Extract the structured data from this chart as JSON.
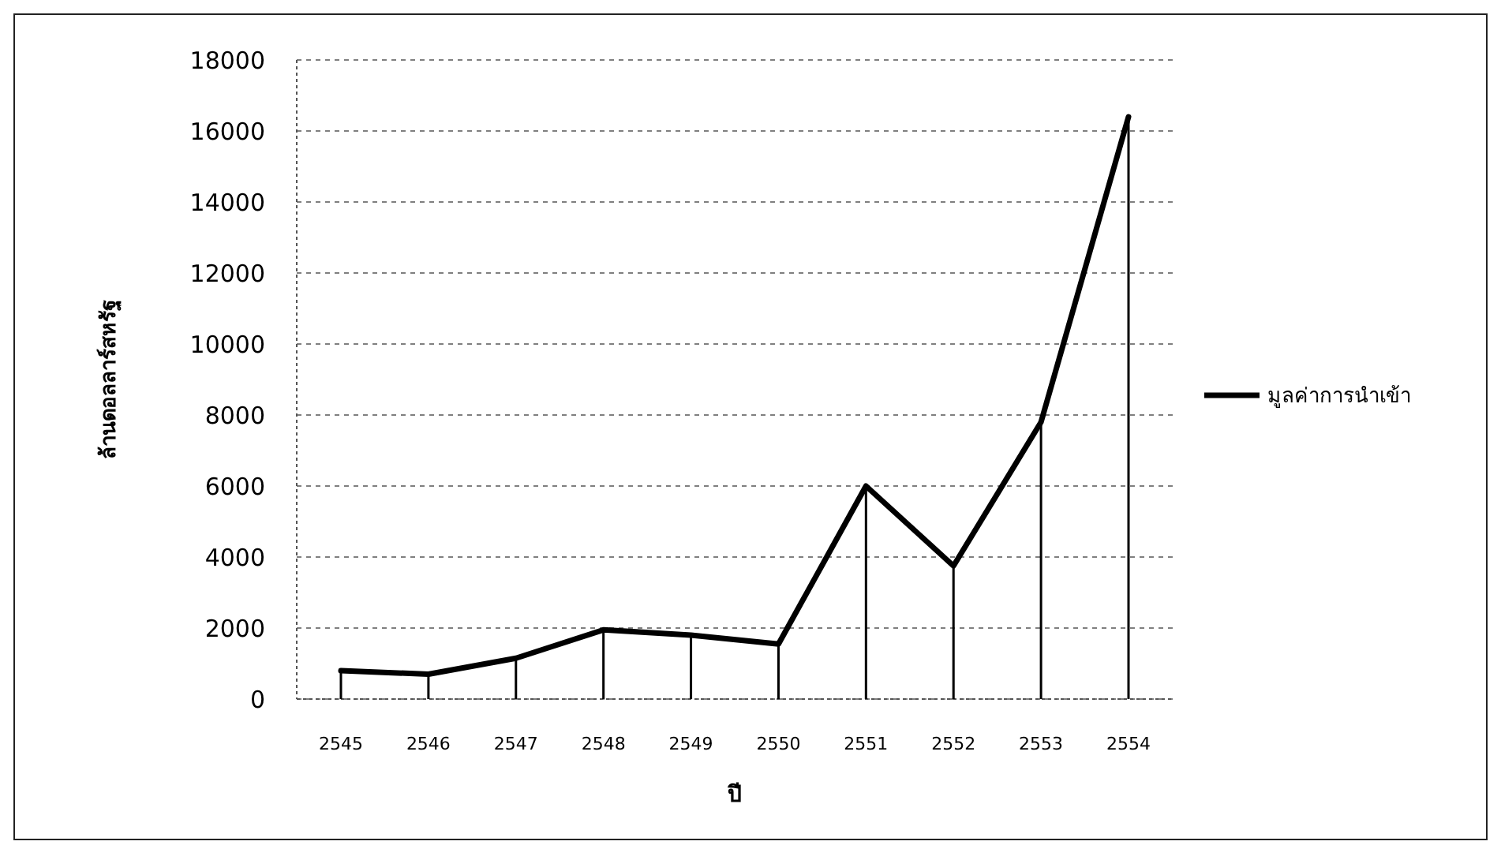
{
  "chart_data": {
    "type": "line",
    "xlabel": "ปี",
    "ylabel": "ล้านดอลลาร์สหรัฐ",
    "categories": [
      "2545",
      "2546",
      "2547",
      "2548",
      "2549",
      "2550",
      "2551",
      "2552",
      "2553",
      "2554"
    ],
    "series": [
      {
        "type": "bar",
        "color": "#000000",
        "values": [
          800,
          700,
          1150,
          1950,
          1800,
          1550,
          6000,
          3750,
          7800,
          16400
        ]
      },
      {
        "name": "มูลค่าการนำเข้า",
        "color": "#000000",
        "values": [
          800,
          700,
          1150,
          1950,
          1800,
          1550,
          6000,
          3750,
          7800,
          16400
        ]
      }
    ],
    "ylim": [
      0,
      18000
    ],
    "yticks": [
      0,
      2000,
      4000,
      6000,
      8000,
      10000,
      12000,
      14000,
      16000,
      18000
    ],
    "grid": "y",
    "legend": "right",
    "marker": "none"
  }
}
